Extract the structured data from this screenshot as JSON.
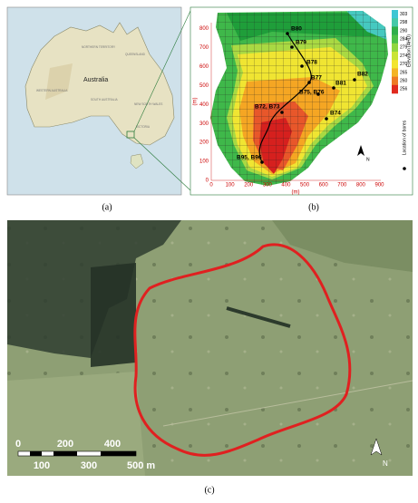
{
  "panel_a": {
    "country_label": "Australia",
    "states": [
      "NORTHERN TERRITORY",
      "QUEENSLAND",
      "WESTERN AUSTRALIA",
      "SOUTH AUSTRALIA",
      "NEW SOUTH WALES",
      "VICTORIA"
    ],
    "caption": "(a)"
  },
  "panel_b": {
    "x_ticks": [
      0,
      100,
      200,
      300,
      400,
      500,
      600,
      700,
      800,
      900
    ],
    "y_ticks": [
      0,
      100,
      200,
      300,
      400,
      500,
      600,
      700,
      800
    ],
    "x_label": "(m)",
    "y_label": "(m)",
    "legend_title": "Elevation (AHD)",
    "legend_ticks": [
      303,
      298,
      290,
      284,
      279,
      274,
      270,
      265,
      260,
      256
    ],
    "bores": [
      "B80",
      "B79",
      "B78",
      "B82",
      "B77",
      "B81",
      "B75, B76",
      "B72, B73",
      "B74",
      "B95, B96"
    ],
    "bore_legend": "Location of bores",
    "north": "N",
    "caption": "(b)"
  },
  "panel_c": {
    "scale_top": [
      "0",
      "200",
      "400"
    ],
    "scale_bottom": [
      "100",
      "300",
      "500 m"
    ],
    "north": "N",
    "caption": "(c)"
  }
}
